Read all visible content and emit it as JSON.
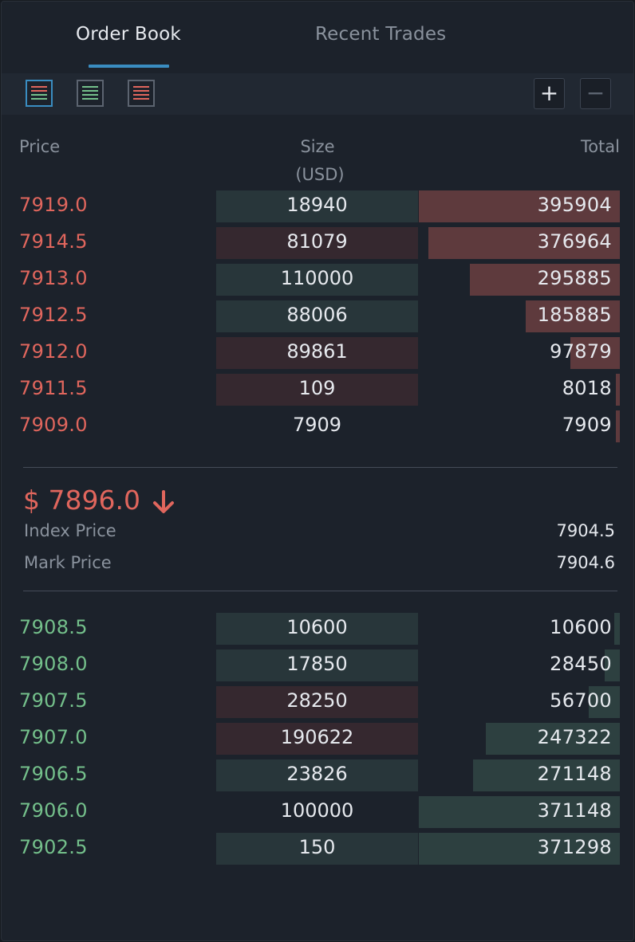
{
  "tabs": {
    "order_book": "Order Book",
    "recent_trades": "Recent Trades"
  },
  "toolbar": {
    "views": [
      {
        "icon": "book-both-sides-icon",
        "active": true
      },
      {
        "icon": "book-bids-only-icon",
        "active": false
      },
      {
        "icon": "book-asks-only-icon",
        "active": false
      }
    ],
    "zoom_in": "+",
    "zoom_out": "−"
  },
  "header": {
    "price": "Price",
    "size": "Size",
    "size_unit": "(USD)",
    "total": "Total"
  },
  "asks": [
    {
      "price": "7919.0",
      "size": "18940",
      "total": "395904",
      "size_color": "green",
      "depth": 1.0
    },
    {
      "price": "7914.5",
      "size": "81079",
      "total": "376964",
      "size_color": "red",
      "depth": 0.952
    },
    {
      "price": "7913.0",
      "size": "110000",
      "total": "295885",
      "size_color": "green",
      "depth": 0.747
    },
    {
      "price": "7912.5",
      "size": "88006",
      "total": "185885",
      "size_color": "green",
      "depth": 0.47
    },
    {
      "price": "7912.0",
      "size": "89861",
      "total": "97879",
      "size_color": "red",
      "depth": 0.247
    },
    {
      "price": "7911.5",
      "size": "109",
      "total": "8018",
      "size_color": "red",
      "depth": 0.02
    },
    {
      "price": "7909.0",
      "size": "7909",
      "total": "7909",
      "size_color": "none",
      "depth": 0.02
    }
  ],
  "last_price": {
    "text": "$ 7896.0",
    "direction": "down",
    "color": "#e0665d"
  },
  "index_price": {
    "label": "Index Price",
    "value": "7904.5"
  },
  "mark_price": {
    "label": "Mark Price",
    "value": "7904.6"
  },
  "bids": [
    {
      "price": "7908.5",
      "size": "10600",
      "total": "10600",
      "size_color": "green",
      "depth": 0.029
    },
    {
      "price": "7908.0",
      "size": "17850",
      "total": "28450",
      "size_color": "green",
      "depth": 0.077
    },
    {
      "price": "7907.5",
      "size": "28250",
      "total": "56700",
      "size_color": "red",
      "depth": 0.153
    },
    {
      "price": "7907.0",
      "size": "190622",
      "total": "247322",
      "size_color": "red",
      "depth": 0.666
    },
    {
      "price": "7906.5",
      "size": "23826",
      "total": "271148",
      "size_color": "green",
      "depth": 0.73
    },
    {
      "price": "7906.0",
      "size": "100000",
      "total": "371148",
      "size_color": "none",
      "depth": 1.0
    },
    {
      "price": "7902.5",
      "size": "150",
      "total": "371298",
      "size_color": "green",
      "depth": 1.0
    }
  ],
  "colors": {
    "ask": "#e0665d",
    "bid": "#74c08b",
    "accent": "#3a8dc1"
  }
}
